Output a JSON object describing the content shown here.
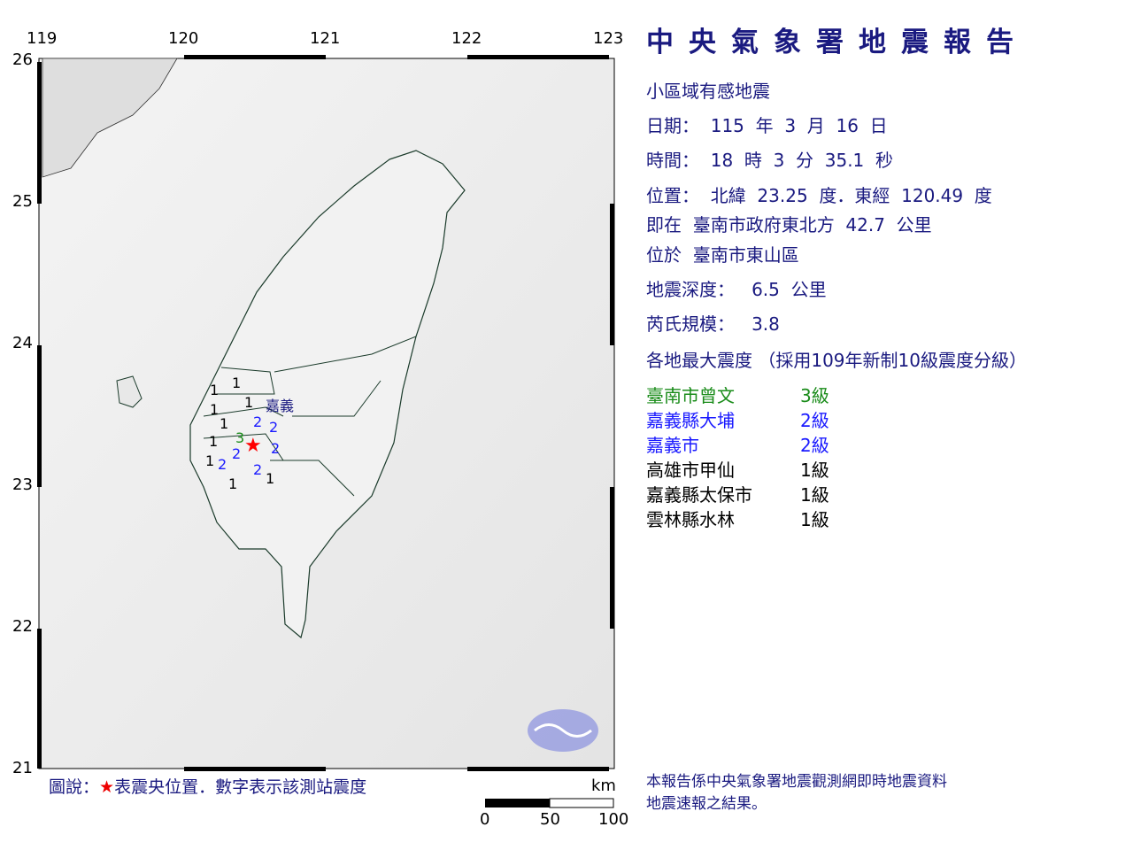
{
  "map": {
    "lon_ticks": [
      "119",
      "120",
      "121",
      "122",
      "123"
    ],
    "lat_ticks": [
      "26",
      "25",
      "24",
      "23",
      "22",
      "21"
    ],
    "epicenter": {
      "lat": 23.25,
      "lon": 120.49,
      "symbol": "★",
      "color": "#ff0000"
    },
    "place_label": "嘉義",
    "station_intensities": [
      "1",
      "1",
      "1",
      "1",
      "1",
      "2",
      "2",
      "1",
      "3",
      "2",
      "2",
      "1",
      "2",
      "1",
      "2",
      "1"
    ],
    "intensity_colors": {
      "1": "#000000",
      "2": "#1a1aff",
      "3": "#1a8c1a"
    },
    "scale": {
      "unit": "km",
      "labels": [
        "0",
        "50",
        "100"
      ]
    },
    "legend": {
      "prefix": "圖說：",
      "star": "★",
      "text": "表震央位置．數字表示該測站震度"
    }
  },
  "report": {
    "title": "中央氣象署地震報告",
    "type": "小區域有感地震",
    "date": "日期：  115  年  3  月  16  日",
    "time": "時間：  18  時  3  分  35.1  秒",
    "location": "位置：  北緯  23.25  度．東經  120.49  度",
    "relative": "即在  臺南市政府東北方  42.7  公里",
    "district": "位於  臺南市東山區",
    "depth": "地震深度：   6.5  公里",
    "magnitude": "芮氏規模：   3.8",
    "intensity_header": "各地最大震度 （採用109年新制10級震度分級）",
    "intensities": [
      {
        "area": "臺南市曾文",
        "level": "3級",
        "color": "#1a8c1a"
      },
      {
        "area": "嘉義縣大埔",
        "level": "2級",
        "color": "#1a1aff"
      },
      {
        "area": "嘉義市",
        "level": "2級",
        "color": "#1a1aff"
      },
      {
        "area": "高雄市甲仙",
        "level": "1級",
        "color": "#000000"
      },
      {
        "area": "嘉義縣太保市",
        "level": "1級",
        "color": "#000000"
      },
      {
        "area": "雲林縣水林",
        "level": "1級",
        "color": "#000000"
      }
    ],
    "footer_1": "本報告係中央氣象署地震觀測網即時地震資料",
    "footer_2": "地震速報之結果。"
  }
}
